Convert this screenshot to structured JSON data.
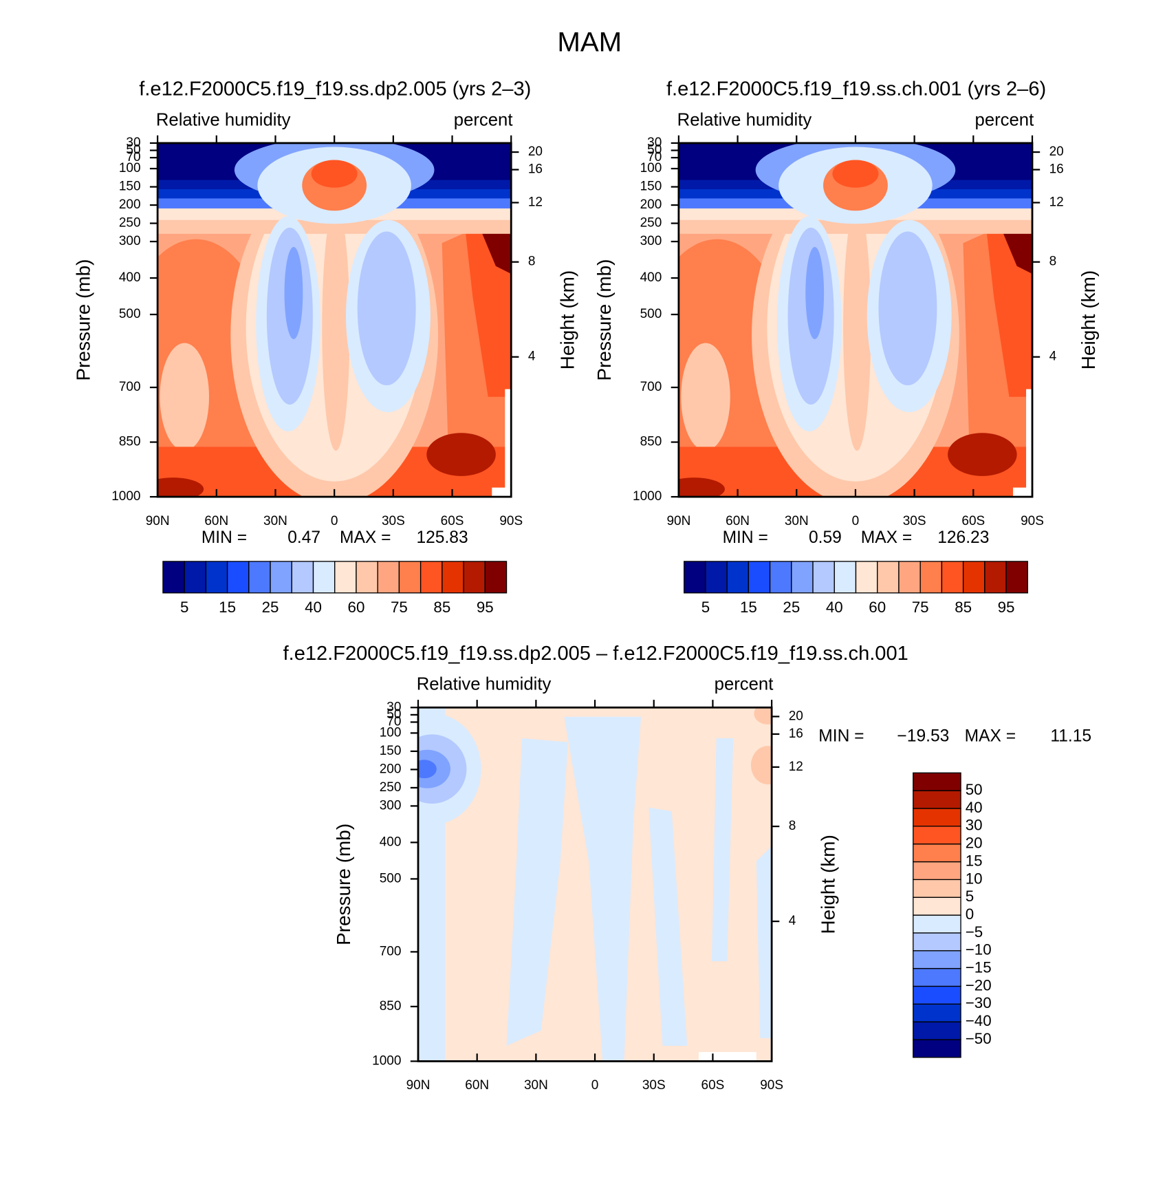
{
  "title": "MAM",
  "chart_data": [
    {
      "type": "contour",
      "title": "f.e12.F2000C5.f19_f19.ss.dp2.005 (yrs 2–3)",
      "left_label": "Relative humidity",
      "right_label": "percent",
      "ylabel": "Pressure (mb)",
      "y2label": "Height (km)",
      "xlim": [
        90,
        -90
      ],
      "xticks": [
        {
          "value": 90,
          "label": "90N"
        },
        {
          "value": 60,
          "label": "60N"
        },
        {
          "value": 30,
          "label": "30N"
        },
        0,
        {
          "value": -30,
          "label": "30S"
        },
        {
          "value": -60,
          "label": "60S"
        },
        {
          "value": -90,
          "label": "90S"
        }
      ],
      "ylim": [
        1000,
        30
      ],
      "yticks": [
        30,
        50,
        70,
        100,
        150,
        200,
        250,
        300,
        400,
        500,
        700,
        850,
        1000
      ],
      "y2ticks": [
        20,
        16,
        12,
        8,
        4
      ],
      "min_label": "MIN =",
      "min": 0.47,
      "max_label": "MAX =",
      "max": 125.83,
      "colorbar": {
        "orientation": "horizontal",
        "colors": [
          "#000080",
          "#0019a8",
          "#0033cc",
          "#1a4dff",
          "#4d79ff",
          "#80a3ff",
          "#b3c9ff",
          "#d9ebff",
          "#ffe6d5",
          "#ffc8aa",
          "#ffa680",
          "#ff7f4d",
          "#ff5522",
          "#e53300",
          "#b31a00",
          "#800000"
        ],
        "labels": [
          5,
          15,
          25,
          40,
          60,
          75,
          85,
          95
        ]
      }
    },
    {
      "type": "contour",
      "title": "f.e12.F2000C5.f19_f19.ss.ch.001 (yrs 2–6)",
      "left_label": "Relative humidity",
      "right_label": "percent",
      "ylabel": "Pressure (mb)",
      "y2label": "Height (km)",
      "xlim": [
        90,
        -90
      ],
      "xticks": [
        {
          "value": 90,
          "label": "90N"
        },
        {
          "value": 60,
          "label": "60N"
        },
        {
          "value": 30,
          "label": "30N"
        },
        0,
        {
          "value": -30,
          "label": "30S"
        },
        {
          "value": -60,
          "label": "60S"
        },
        {
          "value": -90,
          "label": "90S"
        }
      ],
      "ylim": [
        1000,
        30
      ],
      "yticks": [
        30,
        50,
        70,
        100,
        150,
        200,
        250,
        300,
        400,
        500,
        700,
        850,
        1000
      ],
      "y2ticks": [
        20,
        16,
        12,
        8,
        4
      ],
      "min_label": "MIN =",
      "min": 0.59,
      "max_label": "MAX =",
      "max": 126.23,
      "colorbar": {
        "orientation": "horizontal",
        "colors": [
          "#000080",
          "#0019a8",
          "#0033cc",
          "#1a4dff",
          "#4d79ff",
          "#80a3ff",
          "#b3c9ff",
          "#d9ebff",
          "#ffe6d5",
          "#ffc8aa",
          "#ffa680",
          "#ff7f4d",
          "#ff5522",
          "#e53300",
          "#b31a00",
          "#800000"
        ],
        "labels": [
          5,
          15,
          25,
          40,
          60,
          75,
          85,
          95
        ]
      }
    },
    {
      "type": "contour",
      "title": "f.e12.F2000C5.f19_f19.ss.dp2.005 – f.e12.F2000C5.f19_f19.ss.ch.001",
      "left_label": "Relative humidity",
      "right_label": "percent",
      "ylabel": "Pressure (mb)",
      "y2label": "Height (km)",
      "xlim": [
        90,
        -90
      ],
      "xticks": [
        {
          "value": 90,
          "label": "90N"
        },
        {
          "value": 60,
          "label": "60N"
        },
        {
          "value": 30,
          "label": "30N"
        },
        0,
        {
          "value": -30,
          "label": "30S"
        },
        {
          "value": -60,
          "label": "60S"
        },
        {
          "value": -90,
          "label": "90S"
        }
      ],
      "ylim": [
        1000,
        30
      ],
      "yticks": [
        30,
        50,
        70,
        100,
        150,
        200,
        250,
        300,
        400,
        500,
        700,
        850,
        1000
      ],
      "y2ticks": [
        20,
        16,
        12,
        8,
        4
      ],
      "min_label": "MIN =",
      "min": {
        "value": -19.53,
        "label": "−19.53"
      },
      "max_label": "MAX =",
      "max": 11.15,
      "colorbar": {
        "orientation": "vertical",
        "colors": [
          "#000080",
          "#0019a8",
          "#0033cc",
          "#1a4dff",
          "#4d79ff",
          "#80a3ff",
          "#b3c9ff",
          "#d9ebff",
          "#ffe6d5",
          "#ffc8aa",
          "#ffa680",
          "#ff7f4d",
          "#ff5522",
          "#e53300",
          "#b31a00",
          "#800000"
        ],
        "labels": [
          {
            "value": -50,
            "label": "−50"
          },
          {
            "value": -40,
            "label": "−40"
          },
          {
            "value": -30,
            "label": "−30"
          },
          {
            "value": -20,
            "label": "−20"
          },
          {
            "value": -15,
            "label": "−15"
          },
          {
            "value": -10,
            "label": "−10"
          },
          {
            "value": -5,
            "label": "−5"
          },
          0,
          5,
          10,
          15,
          20,
          30,
          40,
          50
        ]
      }
    }
  ]
}
